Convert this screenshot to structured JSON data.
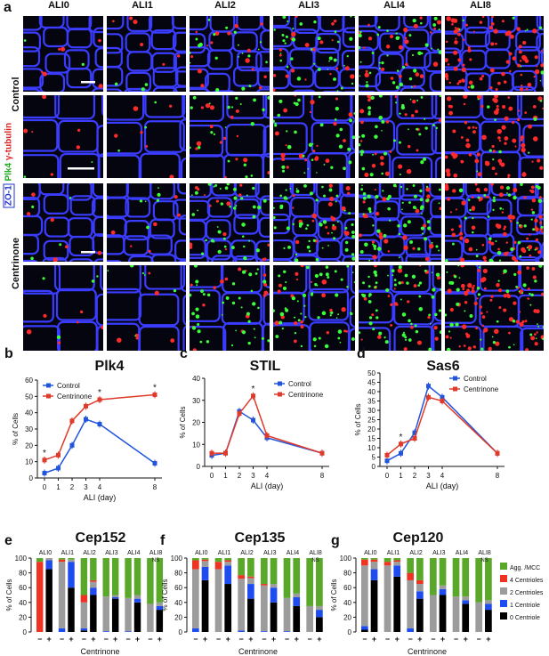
{
  "panel_letters": [
    "a",
    "b",
    "c",
    "d",
    "e",
    "f",
    "g"
  ],
  "micro": {
    "columns": [
      "ALI0",
      "ALI1",
      "ALI2",
      "ALI3",
      "ALI4",
      "ALI8"
    ],
    "rows": [
      "Control",
      "Centrinone"
    ],
    "stain": {
      "zo1": "ZO-1",
      "plk4": "Plk4",
      "tub": "γ-tubulin"
    },
    "colors": {
      "membrane": "#3a3cff",
      "plk4": "#3cff3c",
      "tub": "#ff2a2a",
      "bg": "#060612"
    }
  },
  "legend_bcd": {
    "control": "Control",
    "centrinone": "Centrinone"
  },
  "legend_efg": [
    "Agg. /MCC",
    "4 Centrioles",
    "2 Centrioles",
    "1 Centriole",
    "0 Centriole"
  ],
  "xaxis_efg": "Centrinone",
  "signs": [
    "−",
    "+"
  ],
  "chart_data": [
    {
      "type": "line",
      "title": "Plk4",
      "xlabel": "ALI (day)",
      "ylabel": "% of Cells",
      "x": [
        0,
        1,
        2,
        3,
        4,
        8
      ],
      "ylim": [
        0,
        60
      ],
      "yticks": [
        0,
        10,
        20,
        30,
        40,
        50,
        60
      ],
      "series": [
        {
          "name": "Control",
          "color": "#2255dd",
          "values": [
            3,
            6,
            20,
            36,
            33,
            9
          ]
        },
        {
          "name": "Centrinone",
          "color": "#e03a2a",
          "values": [
            11,
            14,
            35,
            44,
            48,
            51
          ]
        }
      ],
      "stars_x": [
        0,
        4,
        8
      ],
      "legend": "top-left"
    },
    {
      "type": "line",
      "title": "STIL",
      "xlabel": "ALI (day)",
      "ylabel": "% of Cells",
      "x": [
        0,
        1,
        2,
        3,
        4,
        8
      ],
      "ylim": [
        0,
        40
      ],
      "yticks": [
        0,
        10,
        20,
        30,
        40
      ],
      "series": [
        {
          "name": "Control",
          "color": "#2255dd",
          "values": [
            5,
            6,
            25,
            21,
            13,
            6
          ]
        },
        {
          "name": "Centrinone",
          "color": "#e03a2a",
          "values": [
            6,
            6,
            24,
            32,
            14,
            6
          ]
        }
      ],
      "stars_x": [
        3
      ],
      "legend": "top-right"
    },
    {
      "type": "line",
      "title": "Sas6",
      "xlabel": "ALI (day)",
      "ylabel": "% of Cells",
      "x": [
        0,
        1,
        2,
        3,
        4,
        8
      ],
      "ylim": [
        0,
        50
      ],
      "yticks": [
        0,
        5,
        10,
        15,
        20,
        25,
        30,
        35,
        40,
        45,
        50
      ],
      "series": [
        {
          "name": "Control",
          "color": "#2255dd",
          "values": [
            3,
            7,
            18,
            43,
            37,
            7
          ]
        },
        {
          "name": "Centrinone",
          "color": "#e03a2a",
          "values": [
            6,
            12,
            15,
            37,
            35,
            7
          ]
        }
      ],
      "stars_x": [
        1
      ],
      "legend": "top-right"
    },
    {
      "type": "bar",
      "title": "Cep152",
      "ylabel": "% of Cells",
      "xlabel": "Centrinone",
      "groups": [
        "ALI0",
        "ALI1",
        "ALI2",
        "ALI3",
        "ALI4",
        "ALI8"
      ],
      "ns_group": "ALI8",
      "stack_order": [
        "0 Centriole",
        "1 Centriole",
        "2 Centrioles",
        "4 Centrioles",
        "Agg. /MCC"
      ],
      "bars": [
        [
          0,
          0,
          0,
          95,
          5
        ],
        [
          85,
          12,
          3,
          0,
          0
        ],
        [
          0,
          5,
          90,
          3,
          2
        ],
        [
          60,
          35,
          3,
          0,
          2
        ],
        [
          2,
          3,
          35,
          10,
          50
        ],
        [
          50,
          10,
          8,
          2,
          30
        ],
        [
          0,
          1,
          47,
          0,
          52
        ],
        [
          45,
          2,
          3,
          0,
          50
        ],
        [
          0,
          1,
          45,
          0,
          54
        ],
        [
          40,
          5,
          5,
          0,
          50
        ],
        [
          0,
          0,
          38,
          0,
          62
        ],
        [
          30,
          5,
          5,
          0,
          60
        ]
      ]
    },
    {
      "type": "bar",
      "title": "Cep135",
      "ylabel": "% of Cells",
      "xlabel": "Centrinone",
      "groups": [
        "ALI0",
        "ALI1",
        "ALI2",
        "ALI3",
        "ALI4",
        "ALI8"
      ],
      "ns_group": "ALI8",
      "stack_order": [
        "0 Centriole",
        "1 Centriole",
        "2 Centrioles",
        "4 Centrioles",
        "Agg. /MCC"
      ],
      "bars": [
        [
          0,
          5,
          80,
          12,
          3
        ],
        [
          70,
          18,
          8,
          2,
          2
        ],
        [
          0,
          0,
          85,
          10,
          5
        ],
        [
          65,
          25,
          5,
          2,
          3
        ],
        [
          0,
          2,
          70,
          5,
          23
        ],
        [
          45,
          20,
          8,
          2,
          25
        ],
        [
          0,
          1,
          62,
          2,
          35
        ],
        [
          40,
          20,
          5,
          0,
          35
        ],
        [
          0,
          1,
          45,
          0,
          54
        ],
        [
          35,
          12,
          5,
          0,
          48
        ],
        [
          0,
          0,
          35,
          0,
          65
        ],
        [
          20,
          10,
          5,
          0,
          65
        ]
      ]
    },
    {
      "type": "bar",
      "title": "Cep120",
      "ylabel": "% of Cells",
      "xlabel": "Centrinone",
      "groups": [
        "ALI0",
        "ALI1",
        "ALI2",
        "ALI3",
        "ALI4",
        "ALI8"
      ],
      "ns_group": "ALI8",
      "stack_order": [
        "0 Centriole",
        "1 Centriole",
        "2 Centrioles",
        "4 Centrioles",
        "Agg. /MCC"
      ],
      "bars": [
        [
          3,
          5,
          82,
          8,
          2
        ],
        [
          70,
          15,
          10,
          3,
          2
        ],
        [
          0,
          0,
          90,
          5,
          5
        ],
        [
          75,
          15,
          5,
          2,
          3
        ],
        [
          0,
          5,
          65,
          10,
          20
        ],
        [
          45,
          10,
          10,
          5,
          30
        ],
        [
          0,
          0,
          50,
          0,
          50
        ],
        [
          50,
          8,
          5,
          0,
          37
        ],
        [
          0,
          0,
          48,
          0,
          52
        ],
        [
          38,
          5,
          5,
          0,
          52
        ],
        [
          0,
          0,
          40,
          0,
          60
        ],
        [
          30,
          8,
          5,
          0,
          57
        ]
      ]
    }
  ]
}
